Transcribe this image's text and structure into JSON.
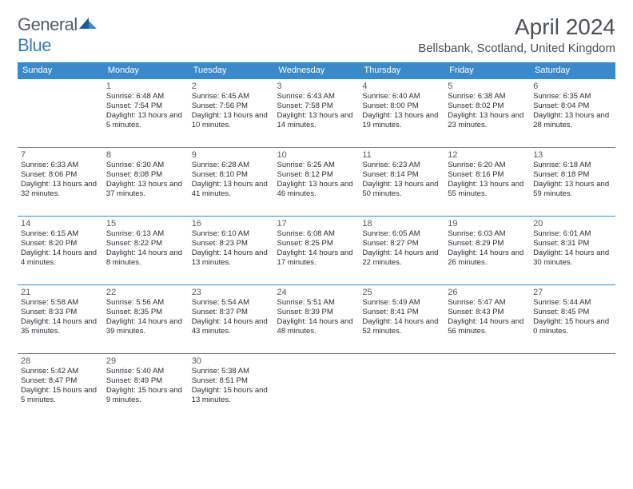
{
  "brand": {
    "part1": "General",
    "part2": "Blue"
  },
  "title": "April 2024",
  "location": "Bellsbank, Scotland, United Kingdom",
  "colors": {
    "header_bg": "#3a8acb",
    "header_text": "#ffffff",
    "rule": "#3a8acb",
    "body_text": "#2a2e33",
    "muted_text": "#555b61",
    "brand_gray": "#555b61",
    "brand_blue": "#3a7ab8",
    "page_bg": "#ffffff"
  },
  "typography": {
    "title_fontsize": 28,
    "location_fontsize": 15,
    "header_fontsize": 11,
    "daynum_fontsize": 11,
    "body_fontsize": 9.5
  },
  "columns": [
    "Sunday",
    "Monday",
    "Tuesday",
    "Wednesday",
    "Thursday",
    "Friday",
    "Saturday"
  ],
  "weeks": [
    [
      null,
      {
        "n": "1",
        "sr": "6:48 AM",
        "ss": "7:54 PM",
        "dl": "13 hours and 5 minutes."
      },
      {
        "n": "2",
        "sr": "6:45 AM",
        "ss": "7:56 PM",
        "dl": "13 hours and 10 minutes."
      },
      {
        "n": "3",
        "sr": "6:43 AM",
        "ss": "7:58 PM",
        "dl": "13 hours and 14 minutes."
      },
      {
        "n": "4",
        "sr": "6:40 AM",
        "ss": "8:00 PM",
        "dl": "13 hours and 19 minutes."
      },
      {
        "n": "5",
        "sr": "6:38 AM",
        "ss": "8:02 PM",
        "dl": "13 hours and 23 minutes."
      },
      {
        "n": "6",
        "sr": "6:35 AM",
        "ss": "8:04 PM",
        "dl": "13 hours and 28 minutes."
      }
    ],
    [
      {
        "n": "7",
        "sr": "6:33 AM",
        "ss": "8:06 PM",
        "dl": "13 hours and 32 minutes."
      },
      {
        "n": "8",
        "sr": "6:30 AM",
        "ss": "8:08 PM",
        "dl": "13 hours and 37 minutes."
      },
      {
        "n": "9",
        "sr": "6:28 AM",
        "ss": "8:10 PM",
        "dl": "13 hours and 41 minutes."
      },
      {
        "n": "10",
        "sr": "6:25 AM",
        "ss": "8:12 PM",
        "dl": "13 hours and 46 minutes."
      },
      {
        "n": "11",
        "sr": "6:23 AM",
        "ss": "8:14 PM",
        "dl": "13 hours and 50 minutes."
      },
      {
        "n": "12",
        "sr": "6:20 AM",
        "ss": "8:16 PM",
        "dl": "13 hours and 55 minutes."
      },
      {
        "n": "13",
        "sr": "6:18 AM",
        "ss": "8:18 PM",
        "dl": "13 hours and 59 minutes."
      }
    ],
    [
      {
        "n": "14",
        "sr": "6:15 AM",
        "ss": "8:20 PM",
        "dl": "14 hours and 4 minutes."
      },
      {
        "n": "15",
        "sr": "6:13 AM",
        "ss": "8:22 PM",
        "dl": "14 hours and 8 minutes."
      },
      {
        "n": "16",
        "sr": "6:10 AM",
        "ss": "8:23 PM",
        "dl": "14 hours and 13 minutes."
      },
      {
        "n": "17",
        "sr": "6:08 AM",
        "ss": "8:25 PM",
        "dl": "14 hours and 17 minutes."
      },
      {
        "n": "18",
        "sr": "6:05 AM",
        "ss": "8:27 PM",
        "dl": "14 hours and 22 minutes."
      },
      {
        "n": "19",
        "sr": "6:03 AM",
        "ss": "8:29 PM",
        "dl": "14 hours and 26 minutes."
      },
      {
        "n": "20",
        "sr": "6:01 AM",
        "ss": "8:31 PM",
        "dl": "14 hours and 30 minutes."
      }
    ],
    [
      {
        "n": "21",
        "sr": "5:58 AM",
        "ss": "8:33 PM",
        "dl": "14 hours and 35 minutes."
      },
      {
        "n": "22",
        "sr": "5:56 AM",
        "ss": "8:35 PM",
        "dl": "14 hours and 39 minutes."
      },
      {
        "n": "23",
        "sr": "5:54 AM",
        "ss": "8:37 PM",
        "dl": "14 hours and 43 minutes."
      },
      {
        "n": "24",
        "sr": "5:51 AM",
        "ss": "8:39 PM",
        "dl": "14 hours and 48 minutes."
      },
      {
        "n": "25",
        "sr": "5:49 AM",
        "ss": "8:41 PM",
        "dl": "14 hours and 52 minutes."
      },
      {
        "n": "26",
        "sr": "5:47 AM",
        "ss": "8:43 PM",
        "dl": "14 hours and 56 minutes."
      },
      {
        "n": "27",
        "sr": "5:44 AM",
        "ss": "8:45 PM",
        "dl": "15 hours and 0 minutes."
      }
    ],
    [
      {
        "n": "28",
        "sr": "5:42 AM",
        "ss": "8:47 PM",
        "dl": "15 hours and 5 minutes."
      },
      {
        "n": "29",
        "sr": "5:40 AM",
        "ss": "8:49 PM",
        "dl": "15 hours and 9 minutes."
      },
      {
        "n": "30",
        "sr": "5:38 AM",
        "ss": "8:51 PM",
        "dl": "15 hours and 13 minutes."
      },
      null,
      null,
      null,
      null
    ]
  ],
  "labels": {
    "sunrise_prefix": "Sunrise: ",
    "sunset_prefix": "Sunset: ",
    "daylight_prefix": "Daylight: "
  }
}
